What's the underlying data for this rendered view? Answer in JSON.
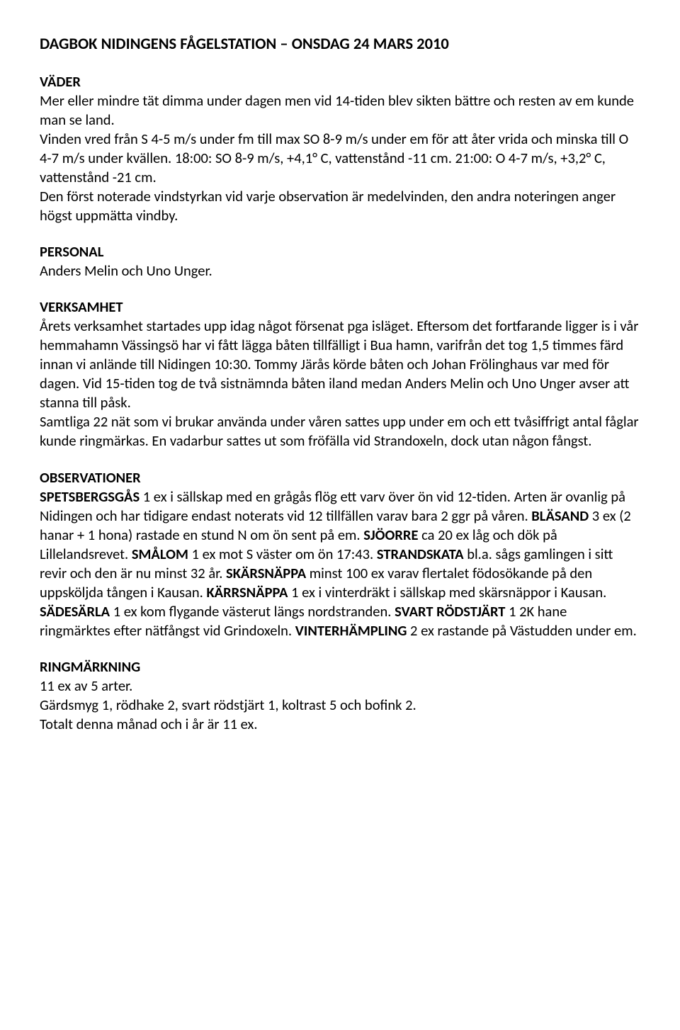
{
  "title": "DAGBOK NIDINGENS FÅGELSTATION – ONSDAG 24 MARS 2010",
  "vader": {
    "head": "VÄDER",
    "p1": "Mer eller mindre tät dimma under dagen men vid 14-tiden blev sikten bättre och resten av em kunde man se land.",
    "p2": "Vinden vred från S 4-5 m/s under fm till max SO 8-9 m/s under em för att åter vrida och minska till O 4-7 m/s under kvällen. 18:00: SO 8-9 m/s, +4,1° C, vattenstånd -11 cm. 21:00: O 4-7 m/s, +3,2° C, vattenstånd -21 cm.",
    "p3": "Den först noterade vindstyrkan vid varje observation är medelvinden, den andra noteringen anger högst uppmätta vindby."
  },
  "personal": {
    "head": "PERSONAL",
    "text": "Anders Melin och Uno Unger."
  },
  "verksamhet": {
    "head": "VERKSAMHET",
    "p1": "Årets  verksamhet startades upp idag något försenat pga isläget. Eftersom det fortfarande ligger is i vår hemmahamn Vässingsö har vi fått lägga båten tillfälligt i Bua hamn, varifrån det tog 1,5 timmes färd innan vi anlände till Nidingen 10:30. Tommy Järås körde båten och Johan Frölinghaus var med för dagen. Vid 15-tiden tog de två sistnämnda båten iland medan Anders Melin och Uno Unger avser att stanna till påsk.",
    "p2": "Samtliga 22 nät som vi brukar använda under våren sattes upp under em och ett tvåsiffrigt antal fåglar kunde ringmärkas. En vadarbur sattes ut som fröfälla vid Strandoxeln, dock utan någon fångst."
  },
  "obs": {
    "head": "OBSERVATIONER",
    "s1b": "SPETSBERGSGÅS",
    "s1": " 1 ex i sällskap med en grågås flög ett varv över ön vid 12-tiden. Arten är ovanlig på Nidingen och har tidigare endast noterats vid 12 tillfällen varav bara 2 ggr på våren. ",
    "s2b": "BLÄSAND",
    "s2": " 3 ex (2 hanar + 1 hona) rastade en stund N om ön sent på em. ",
    "s3b": "SJÖORRE",
    "s3": " ca 20 ex låg och dök på Lillelandsrevet. ",
    "s4b": "SMÅLOM",
    "s4": " 1 ex mot S väster om ön 17:43. ",
    "s5b": "STRANDSKATA",
    "s5": " bl.a. sågs gamlingen i sitt revir och den är nu minst 32 år. ",
    "s6b": "SKÄRSNÄPPA",
    "s6": " minst 100 ex varav flertalet födosökande på den uppsköljda tången i Kausan. ",
    "s7b": "KÄRRSNÄPPA",
    "s7": " 1 ex i vinterdräkt i sällskap med skärsnäppor i Kausan. ",
    "s8b": "SÄDESÄRLA",
    "s8": " 1 ex kom flygande västerut längs nordstranden. ",
    "s9b": "SVART RÖDSTJÄRT",
    "s9": " 1 2K hane ringmärktes efter nätfångst vid Grindoxeln. ",
    "s10b": "VINTERHÄMPLING",
    "s10": " 2 ex rastande på Västudden under em."
  },
  "ring": {
    "head": "RINGMÄRKNING",
    "l1": "11 ex av 5 arter.",
    "l2": "Gärdsmyg 1, rödhake 2, svart rödstjärt 1, koltrast 5 och bofink 2.",
    "l3": "Totalt denna månad och i år är 11 ex."
  }
}
